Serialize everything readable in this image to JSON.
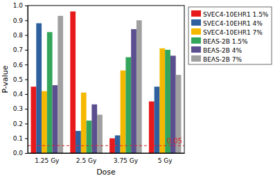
{
  "chart_data": {
    "type": "bar",
    "x_label": "Dose",
    "y_label": "P-value",
    "categories": [
      "1.25 Gy",
      "2.5 Gy",
      "3.75 Gy",
      "5 Gy"
    ],
    "series": [
      {
        "name": "SVEC4-10EHR1 1.5%",
        "color": "#e8191b",
        "values": [
          0.45,
          0.96,
          0.1,
          0.35
        ]
      },
      {
        "name": "SVEC4-10EHR1 4%",
        "color": "#2e5f9e",
        "values": [
          0.88,
          0.15,
          0.12,
          0.45
        ]
      },
      {
        "name": "SVEC4-10EHR1 7%",
        "color": "#f5b800",
        "values": [
          0.42,
          0.41,
          0.56,
          0.71
        ]
      },
      {
        "name": "BEAS-2B 1.5%",
        "color": "#33a65c",
        "values": [
          0.82,
          0.22,
          0.65,
          0.7
        ]
      },
      {
        "name": "BEAS-2B 4%",
        "color": "#5c4f8f",
        "values": [
          0.46,
          0.33,
          0.84,
          0.66
        ]
      },
      {
        "name": "BEAS-2B 7%",
        "color": "#a0a0a0",
        "values": [
          0.93,
          0.26,
          0.9,
          0.53
        ]
      }
    ],
    "ylim": [
      0,
      1
    ],
    "yticks": [
      {
        "value": 0,
        "label": "0.0"
      },
      0.1,
      0.2,
      0.3,
      0.4,
      0.5,
      0.6,
      0.7,
      0.8,
      0.9,
      {
        "value": 1,
        "label": "1.0"
      }
    ],
    "grid": false,
    "legend": "upper right",
    "annotations": [
      {
        "text": "0.05",
        "y": 0.05,
        "color": "#d62728",
        "line_style": "dashed"
      }
    ]
  }
}
